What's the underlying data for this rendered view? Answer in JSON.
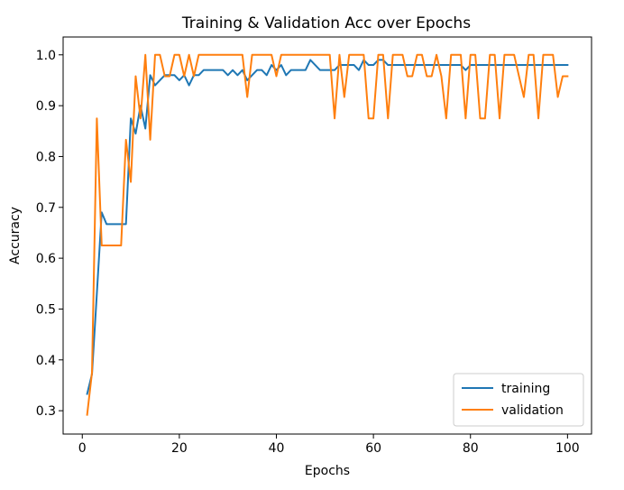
{
  "chart_data": {
    "type": "line",
    "title": "Training & Validation Acc over Epochs",
    "xlabel": "Epochs",
    "ylabel": "Accuracy",
    "xlim": [
      -3.95,
      104.95
    ],
    "ylim": [
      0.2541,
      1.0351
    ],
    "xticks": [
      0,
      20,
      40,
      60,
      80,
      100
    ],
    "yticks": [
      0.3,
      0.4,
      0.5,
      0.6,
      0.7,
      0.8,
      0.9,
      1.0
    ],
    "xtick_labels": [
      "0",
      "20",
      "40",
      "60",
      "80",
      "100"
    ],
    "ytick_labels": [
      "0.3",
      "0.4",
      "0.5",
      "0.6",
      "0.7",
      "0.8",
      "0.9",
      "1.0"
    ],
    "grid": false,
    "legend_position": "lower-right",
    "x": [
      1,
      2,
      3,
      4,
      5,
      6,
      7,
      8,
      9,
      10,
      11,
      12,
      13,
      14,
      15,
      16,
      17,
      18,
      19,
      20,
      21,
      22,
      23,
      24,
      25,
      26,
      27,
      28,
      29,
      30,
      31,
      32,
      33,
      34,
      35,
      36,
      37,
      38,
      39,
      40,
      41,
      42,
      43,
      44,
      45,
      46,
      47,
      48,
      49,
      50,
      51,
      52,
      53,
      54,
      55,
      56,
      57,
      58,
      59,
      60,
      61,
      62,
      63,
      64,
      65,
      66,
      67,
      68,
      69,
      70,
      71,
      72,
      73,
      74,
      75,
      76,
      77,
      78,
      79,
      80,
      81,
      82,
      83,
      84,
      85,
      86,
      87,
      88,
      89,
      90,
      91,
      92,
      93,
      94,
      95,
      96,
      97,
      98,
      99,
      100
    ],
    "series": [
      {
        "name": "training",
        "color": "#1f77b4",
        "values": [
          0.333,
          0.372,
          0.53,
          0.69,
          0.667,
          0.667,
          0.667,
          0.667,
          0.667,
          0.875,
          0.845,
          0.9,
          0.855,
          0.96,
          0.94,
          0.95,
          0.96,
          0.96,
          0.96,
          0.95,
          0.96,
          0.94,
          0.96,
          0.96,
          0.97,
          0.97,
          0.97,
          0.97,
          0.97,
          0.96,
          0.97,
          0.96,
          0.97,
          0.95,
          0.96,
          0.97,
          0.97,
          0.96,
          0.98,
          0.97,
          0.98,
          0.96,
          0.97,
          0.97,
          0.97,
          0.97,
          0.99,
          0.98,
          0.97,
          0.97,
          0.97,
          0.97,
          0.98,
          0.98,
          0.98,
          0.98,
          0.97,
          0.99,
          0.98,
          0.98,
          0.99,
          0.99,
          0.98,
          0.98,
          0.98,
          0.98,
          0.98,
          0.98,
          0.98,
          0.98,
          0.98,
          0.98,
          0.98,
          0.98,
          0.98,
          0.98,
          0.98,
          0.98,
          0.97,
          0.98,
          0.98,
          0.98,
          0.98,
          0.98,
          0.98,
          0.98,
          0.98,
          0.98,
          0.98,
          0.98,
          0.98,
          0.98,
          0.98,
          0.98,
          0.98,
          0.98,
          0.98,
          0.98,
          0.98,
          0.98
        ]
      },
      {
        "name": "validation",
        "color": "#ff7f0e",
        "values": [
          0.292,
          0.375,
          0.875,
          0.625,
          0.625,
          0.625,
          0.625,
          0.625,
          0.833,
          0.75,
          0.958,
          0.875,
          1.0,
          0.833,
          1.0,
          1.0,
          0.958,
          0.958,
          1.0,
          1.0,
          0.958,
          1.0,
          0.958,
          1.0,
          1.0,
          1.0,
          1.0,
          1.0,
          1.0,
          1.0,
          1.0,
          1.0,
          1.0,
          0.917,
          1.0,
          1.0,
          1.0,
          1.0,
          1.0,
          0.958,
          1.0,
          1.0,
          1.0,
          1.0,
          1.0,
          1.0,
          1.0,
          1.0,
          1.0,
          1.0,
          1.0,
          0.875,
          1.0,
          0.917,
          1.0,
          1.0,
          1.0,
          1.0,
          0.875,
          0.875,
          1.0,
          1.0,
          0.875,
          1.0,
          1.0,
          1.0,
          0.958,
          0.958,
          1.0,
          1.0,
          0.958,
          0.958,
          1.0,
          0.958,
          0.875,
          1.0,
          1.0,
          1.0,
          0.875,
          1.0,
          1.0,
          0.875,
          0.875,
          1.0,
          1.0,
          0.875,
          1.0,
          1.0,
          1.0,
          0.958,
          0.917,
          1.0,
          1.0,
          0.875,
          1.0,
          1.0,
          1.0,
          0.917,
          0.958,
          0.958
        ]
      }
    ]
  }
}
